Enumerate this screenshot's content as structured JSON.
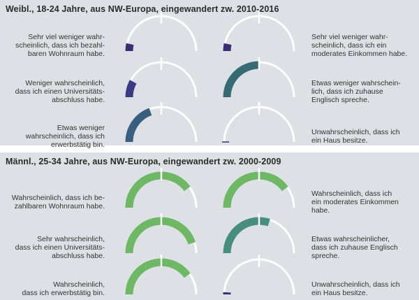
{
  "chart_data": [
    {
      "type": "gauge",
      "title": "Weibl., 18-24 Jahre, aus NW-Europa, eingewandert zw. 2010-2016",
      "range": [
        0,
        1
      ],
      "gauges": [
        {
          "label": "Sehr viel weniger wahr-\nscheinlich, dass ich bezahl-\nbaren Wohnraum habe.",
          "value": 0.07,
          "color": "#3b2c73",
          "side": "left"
        },
        {
          "label": "Sehr viel weniger wahr-\nscheinlich, dass ich ein\nmoderates Einkommen habe.",
          "value": 0.07,
          "color": "#3b2c73",
          "side": "right"
        },
        {
          "label": "Weniger wahrscheinlich,\ndass ich einen Universitäts-\nabschluss habe.",
          "value": 0.16,
          "color": "#3b3a85",
          "side": "left"
        },
        {
          "label": "Etwas weniger wahrschein-\nlich, dass ich zuhause\nEnglisch spreche.",
          "value": 0.5,
          "color": "#366b74",
          "side": "right"
        },
        {
          "label": "Etwas weniger\nwahrscheinlich, dass ich\nerwerbstätig bin.",
          "value": 0.39,
          "color": "#3a5f7e",
          "side": "left"
        },
        {
          "label": "Unwahrscheinlich, dass ich\nein Haus besitze.",
          "value": 0.0,
          "color": "#3b2c73",
          "side": "right"
        }
      ]
    },
    {
      "type": "gauge",
      "title": "Männl., 25-34 Jahre, aus NW-Europa, eingewandert zw. 2000-2009",
      "range": [
        0,
        1
      ],
      "gauges": [
        {
          "label": "Wahrscheinlich, dass ich be-\nzahlbaren Wohnraum habe.",
          "value": 0.8,
          "color": "#6db765",
          "side": "left"
        },
        {
          "label": "Wahrscheinlich, dass ich\nein moderates Einkommen\nhabe.",
          "value": 0.8,
          "color": "#6db765",
          "side": "right"
        },
        {
          "label": "Sehr wahrscheinlich,\ndass ich einen Universitäts-\nabschluss habe.",
          "value": 0.9,
          "color": "#6db765",
          "side": "left"
        },
        {
          "label": "Etwas wahrscheinlicher,\ndass ich zuhause Englisch\nspreche.",
          "value": 0.6,
          "color": "#478e7e",
          "side": "right"
        },
        {
          "label": "Wahrscheinlich,\ndass ich erwerbstätig bin.",
          "value": 0.8,
          "color": "#6db765",
          "side": "left"
        },
        {
          "label": "Unwahrscheinlich, dass ich\nein Haus besitze.",
          "value": 0.02,
          "color": "#3b2c73",
          "side": "right"
        }
      ]
    }
  ]
}
